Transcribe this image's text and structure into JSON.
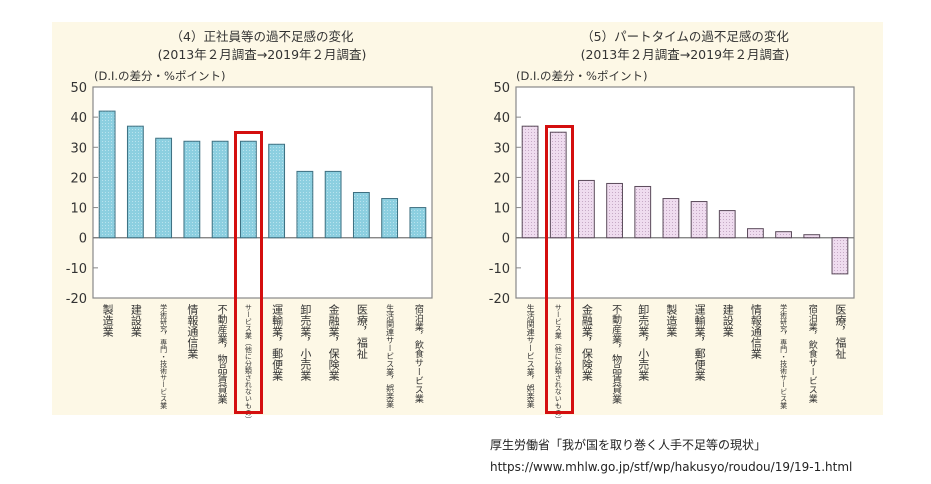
{
  "chart_data": [
    {
      "type": "bar",
      "title": "（4）正社員等の過不足感の変化",
      "subtitle": "(2013年２月調査→2019年２月調査)",
      "ylabel": "(D.I.の差分・%ポイント)",
      "xlabel": "",
      "ylim": [
        -20,
        50
      ],
      "yticks": [
        50,
        40,
        30,
        20,
        10,
        0,
        -10,
        -20
      ],
      "grid": false,
      "legend": "none",
      "bar_color": "#8ccfe0",
      "bar_stroke": "#3d6f80",
      "categories": [
        "製造業",
        "建設業",
        "学術研究，専門・技術サービス業",
        "情報通信業",
        "不動産業，物品賃貸業",
        "サービス業（他に分類されないもの）",
        "運輸業，郵便業",
        "卸売業，小売業",
        "金融業，保険業",
        "医療，福祉",
        "生活関連サービス業，娯楽業",
        "宿泊業，飲食サービス業"
      ],
      "values": [
        42,
        37,
        33,
        32,
        32,
        32,
        31,
        22,
        22,
        15,
        13,
        10
      ],
      "highlighted_category": "サービス業（他に分類されないもの）"
    },
    {
      "type": "bar",
      "title": "（5）パートタイムの過不足感の変化",
      "subtitle": "(2013年２月調査→2019年２月調査)",
      "ylabel": "(D.I.の差分・%ポイント)",
      "xlabel": "",
      "ylim": [
        -20,
        50
      ],
      "yticks": [
        50,
        40,
        30,
        20,
        10,
        0,
        -10,
        -20
      ],
      "grid": false,
      "legend": "none",
      "bar_color": "#ecd8ec",
      "bar_stroke": "#5a4a5a",
      "categories": [
        "生活関連サービス業，娯楽業",
        "サービス業（他に分類されないもの）",
        "金融業，保険業",
        "不動産業，物品賃貸業",
        "卸売業，小売業",
        "製造業",
        "運輸業，郵便業",
        "建設業",
        "情報通信業",
        "学術研究，専門・技術サービス業",
        "宿泊業，飲食サービス業",
        "医療，福祉"
      ],
      "values": [
        37,
        35,
        19,
        18,
        17,
        13,
        12,
        9,
        3,
        2,
        1,
        -12
      ],
      "highlighted_category": "サービス業（他に分類されないもの）"
    }
  ],
  "display_labels": [
    [
      "製造業",
      "建設業",
      "学術研究，専門・技術サービス業",
      "情報通信業",
      "不動産業，物品賃貸業",
      "サービス業（他に分類されないもの）",
      "運輸業，郵便業",
      "卸売業，小売業",
      "金融業，保険業",
      "医療，福祉",
      "生活関連サービス業，娯楽業",
      "宿泊業，飲食サービス業"
    ],
    [
      "生活関連サービス業，娯楽業",
      "サービス業（他に分類されないもの）",
      "金融業，保険業",
      "不動産業，物品賃貸業",
      "卸売業，小売業",
      "製造業",
      "運輸業，郵便業",
      "建設業",
      "情報通信業",
      "学術研究，専門・技術サービス業",
      "宿泊業，飲食サービス業",
      "医療，福祉"
    ]
  ],
  "source": {
    "citation": "厚生労働省「我が国を取り巻く人手不足等の現状」",
    "url": "https://www.mhlw.go.jp/stf/wp/hakusyo/roudou/19/19-1.html"
  }
}
